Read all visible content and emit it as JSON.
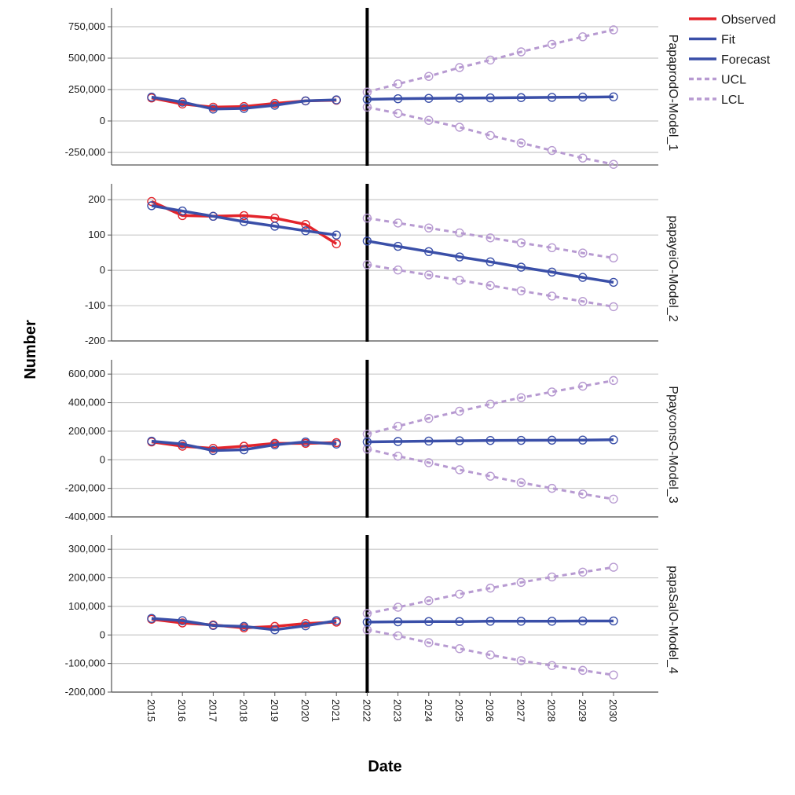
{
  "colors": {
    "observed": "#e3242b",
    "fit": "#3a4fa8",
    "forecast": "#3a4fa8",
    "ucl": "#b79ad1",
    "lcl": "#b79ad1",
    "grid": "#c8c8c8",
    "axis": "#555555",
    "divider": "#000000"
  },
  "chart_data": {
    "type": "line",
    "xlabel": "Date",
    "ylabel": "Number",
    "x_categories": [
      "2015",
      "2016",
      "2017",
      "2018",
      "2019",
      "2020",
      "2021",
      "2022",
      "2023",
      "2024",
      "2025",
      "2026",
      "2027",
      "2028",
      "2029",
      "2030"
    ],
    "divider_at": "2022",
    "legend": {
      "placement": "top-right",
      "entries": [
        {
          "key": "observed",
          "label": "Observed",
          "style": "solid"
        },
        {
          "key": "fit",
          "label": "Fit",
          "style": "solid"
        },
        {
          "key": "forecast",
          "label": "Forecast",
          "style": "solid"
        },
        {
          "key": "ucl",
          "label": "UCL",
          "style": "dashed"
        },
        {
          "key": "lcl",
          "label": "LCL",
          "style": "dashed"
        }
      ]
    },
    "panels": [
      {
        "label": "PapaprodO-Model_1",
        "ylim": [
          -350000,
          900000
        ],
        "yticks": [
          -250000,
          0,
          250000,
          500000,
          750000
        ],
        "ytick_labels": [
          "-250,000",
          "0",
          "250,000",
          "500,000",
          "750,000"
        ],
        "observed": {
          "x": [
            "2015",
            "2016",
            "2017",
            "2018",
            "2019",
            "2020",
            "2021"
          ],
          "y": [
            183000,
            135000,
            110000,
            115000,
            140000,
            160000,
            165000
          ]
        },
        "fit": {
          "x": [
            "2015",
            "2016",
            "2017",
            "2018",
            "2019",
            "2020",
            "2021"
          ],
          "y": [
            190000,
            150000,
            95000,
            100000,
            125000,
            160000,
            168000
          ]
        },
        "forecast": {
          "x": [
            "2022",
            "2023",
            "2024",
            "2025",
            "2026",
            "2027",
            "2028",
            "2029",
            "2030"
          ],
          "y": [
            172000,
            177000,
            180000,
            182000,
            184000,
            186000,
            188000,
            190000,
            192000
          ]
        },
        "ucl": {
          "x": [
            "2022",
            "2023",
            "2024",
            "2025",
            "2026",
            "2027",
            "2028",
            "2029",
            "2030"
          ],
          "y": [
            230000,
            295000,
            355000,
            425000,
            485000,
            550000,
            610000,
            670000,
            725000
          ]
        },
        "lcl": {
          "x": [
            "2022",
            "2023",
            "2024",
            "2025",
            "2026",
            "2027",
            "2028",
            "2029",
            "2030"
          ],
          "y": [
            110000,
            60000,
            5000,
            -50000,
            -115000,
            -175000,
            -235000,
            -295000,
            -345000
          ]
        }
      },
      {
        "label": "papayeiO-Model_2",
        "ylim": [
          -200,
          245
        ],
        "yticks": [
          -200,
          -100,
          0,
          100,
          200
        ],
        "ytick_labels": [
          "-200",
          "-100",
          "0",
          "100",
          "200"
        ],
        "observed": {
          "x": [
            "2015",
            "2016",
            "2017",
            "2018",
            "2019",
            "2020",
            "2021"
          ],
          "y": [
            195,
            155,
            153,
            155,
            148,
            130,
            75
          ]
        },
        "fit": {
          "x": [
            "2015",
            "2016",
            "2017",
            "2018",
            "2019",
            "2020",
            "2021"
          ],
          "y": [
            183,
            168,
            153,
            138,
            125,
            112,
            100
          ]
        },
        "forecast": {
          "x": [
            "2022",
            "2023",
            "2024",
            "2025",
            "2026",
            "2027",
            "2028",
            "2029",
            "2030"
          ],
          "y": [
            83,
            68,
            53,
            38,
            24,
            9,
            -5,
            -20,
            -34
          ]
        },
        "ucl": {
          "x": [
            "2022",
            "2023",
            "2024",
            "2025",
            "2026",
            "2027",
            "2028",
            "2029",
            "2030"
          ],
          "y": [
            148,
            134,
            120,
            106,
            92,
            78,
            64,
            49,
            35
          ]
        },
        "lcl": {
          "x": [
            "2022",
            "2023",
            "2024",
            "2025",
            "2026",
            "2027",
            "2028",
            "2029",
            "2030"
          ],
          "y": [
            16,
            1,
            -13,
            -28,
            -43,
            -58,
            -73,
            -88,
            -103
          ]
        }
      },
      {
        "label": "PpayconsO-Model_3",
        "ylim": [
          -400000,
          700000
        ],
        "yticks": [
          -400000,
          -200000,
          0,
          200000,
          400000,
          600000
        ],
        "ytick_labels": [
          "-400,000",
          "-200,000",
          "0",
          "200,000",
          "400,000",
          "600,000"
        ],
        "observed": {
          "x": [
            "2015",
            "2016",
            "2017",
            "2018",
            "2019",
            "2020",
            "2021"
          ],
          "y": [
            125000,
            95000,
            80000,
            95000,
            115000,
            115000,
            120000
          ]
        },
        "fit": {
          "x": [
            "2015",
            "2016",
            "2017",
            "2018",
            "2019",
            "2020",
            "2021"
          ],
          "y": [
            130000,
            110000,
            65000,
            70000,
            105000,
            125000,
            110000
          ]
        },
        "forecast": {
          "x": [
            "2022",
            "2023",
            "2024",
            "2025",
            "2026",
            "2027",
            "2028",
            "2029",
            "2030"
          ],
          "y": [
            125000,
            128000,
            131000,
            133000,
            135000,
            136000,
            137000,
            138000,
            140000
          ]
        },
        "ucl": {
          "x": [
            "2022",
            "2023",
            "2024",
            "2025",
            "2026",
            "2027",
            "2028",
            "2029",
            "2030"
          ],
          "y": [
            180000,
            235000,
            290000,
            340000,
            390000,
            435000,
            475000,
            515000,
            555000
          ]
        },
        "lcl": {
          "x": [
            "2022",
            "2023",
            "2024",
            "2025",
            "2026",
            "2027",
            "2028",
            "2029",
            "2030"
          ],
          "y": [
            75000,
            25000,
            -20000,
            -70000,
            -115000,
            -160000,
            -200000,
            -240000,
            -275000
          ]
        }
      },
      {
        "label": "papaSalO-Model_4",
        "ylim": [
          -200000,
          350000
        ],
        "yticks": [
          -200000,
          -100000,
          0,
          100000,
          200000,
          300000
        ],
        "ytick_labels": [
          "-200,000",
          "-100,000",
          "0",
          "100,000",
          "200,000",
          "300,000"
        ],
        "observed": {
          "x": [
            "2015",
            "2016",
            "2017",
            "2018",
            "2019",
            "2020",
            "2021"
          ],
          "y": [
            55000,
            42000,
            35000,
            25000,
            30000,
            40000,
            45000
          ]
        },
        "fit": {
          "x": [
            "2015",
            "2016",
            "2017",
            "2018",
            "2019",
            "2020",
            "2021"
          ],
          "y": [
            58000,
            50000,
            33000,
            30000,
            18000,
            32000,
            50000
          ]
        },
        "forecast": {
          "x": [
            "2022",
            "2023",
            "2024",
            "2025",
            "2026",
            "2027",
            "2028",
            "2029",
            "2030"
          ],
          "y": [
            45000,
            46000,
            47000,
            47000,
            48000,
            48000,
            48000,
            49000,
            49000
          ]
        },
        "ucl": {
          "x": [
            "2022",
            "2023",
            "2024",
            "2025",
            "2026",
            "2027",
            "2028",
            "2029",
            "2030"
          ],
          "y": [
            75000,
            97000,
            120000,
            143000,
            164000,
            184000,
            203000,
            220000,
            237000
          ]
        },
        "lcl": {
          "x": [
            "2022",
            "2023",
            "2024",
            "2025",
            "2026",
            "2027",
            "2028",
            "2029",
            "2030"
          ],
          "y": [
            18000,
            -3000,
            -27000,
            -48000,
            -70000,
            -90000,
            -107000,
            -124000,
            -140000
          ]
        }
      }
    ]
  }
}
